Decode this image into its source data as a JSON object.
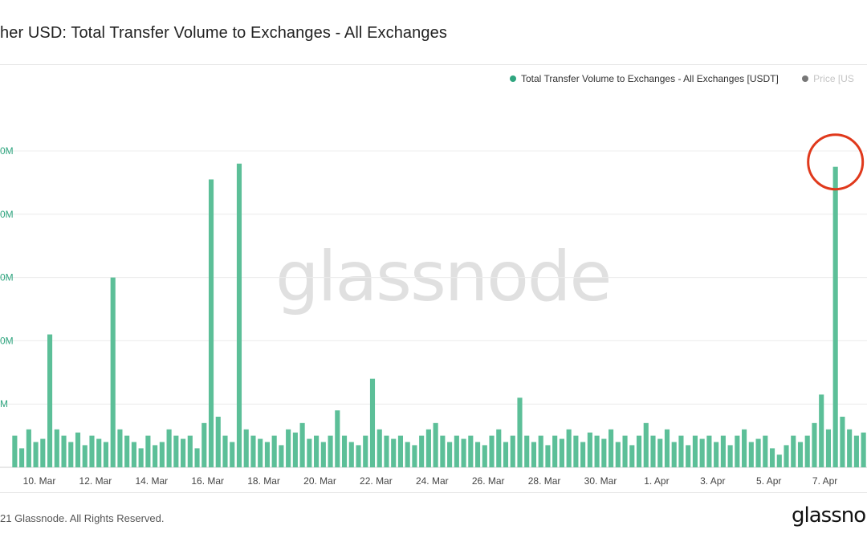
{
  "header": {
    "title": "her USD: Total Transfer Volume to Exchanges - All Exchanges"
  },
  "legend": {
    "items": [
      {
        "label": "Total Transfer Volume to Exchanges - All Exchanges [USDT]",
        "color": "#2fa57f"
      },
      {
        "label": "Price [US",
        "color": "#777777"
      }
    ]
  },
  "watermark": "glassnode",
  "footer": {
    "copyright": "21 Glassnode. All Rights Reserved.",
    "brand": "glassno"
  },
  "annotation": {
    "type": "circle",
    "color": "#e0391c",
    "target": "7 Apr spike"
  },
  "chart_data": {
    "type": "bar",
    "y_tick_labels": [
      "0M",
      "0M",
      "0M",
      "0M",
      "M"
    ],
    "x_tick_labels": [
      "10. Mar",
      "12. Mar",
      "14. Mar",
      "16. Mar",
      "18. Mar",
      "20. Mar",
      "22. Mar",
      "24. Mar",
      "26. Mar",
      "28. Mar",
      "30. Mar",
      "1. Apr",
      "3. Apr",
      "5. Apr",
      "7. Apr"
    ],
    "y_axis_note": "tick labels truncated at left edge; values estimated in gridline units (1 unit = one gridline step)",
    "ylim": [
      0,
      5
    ],
    "grid": true,
    "series": [
      {
        "name": "Total Transfer Volume to Exchanges - All Exchanges [USDT]",
        "color": "#5cbf98",
        "x": [
          "9 Mar 00:00",
          "9 Mar 06:00",
          "9 Mar 12:00",
          "9 Mar 18:00",
          "10 Mar 00:00",
          "10 Mar 06:00",
          "10 Mar 12:00",
          "10 Mar 18:00",
          "11 Mar 00:00",
          "11 Mar 06:00",
          "11 Mar 12:00",
          "11 Mar 18:00",
          "12 Mar 00:00",
          "12 Mar 06:00",
          "12 Mar 12:00",
          "12 Mar 18:00",
          "13 Mar 00:00",
          "13 Mar 06:00",
          "13 Mar 12:00",
          "13 Mar 18:00",
          "14 Mar 00:00",
          "14 Mar 06:00",
          "14 Mar 12:00",
          "14 Mar 18:00",
          "15 Mar 00:00",
          "15 Mar 06:00",
          "15 Mar 12:00",
          "15 Mar 18:00",
          "16 Mar 00:00",
          "16 Mar 06:00",
          "16 Mar 12:00",
          "16 Mar 18:00",
          "17 Mar 00:00",
          "17 Mar 06:00",
          "17 Mar 12:00",
          "17 Mar 18:00",
          "18 Mar 00:00",
          "18 Mar 06:00",
          "18 Mar 12:00",
          "18 Mar 18:00",
          "19 Mar 00:00",
          "19 Mar 06:00",
          "19 Mar 12:00",
          "19 Mar 18:00",
          "20 Mar 00:00",
          "20 Mar 06:00",
          "20 Mar 12:00",
          "20 Mar 18:00",
          "21 Mar 00:00",
          "21 Mar 06:00",
          "21 Mar 12:00",
          "21 Mar 18:00",
          "22 Mar 00:00",
          "22 Mar 06:00",
          "22 Mar 12:00",
          "22 Mar 18:00",
          "23 Mar 00:00",
          "23 Mar 06:00",
          "23 Mar 12:00",
          "23 Mar 18:00",
          "24 Mar 00:00",
          "24 Mar 06:00",
          "24 Mar 12:00",
          "24 Mar 18:00",
          "25 Mar 00:00",
          "25 Mar 06:00",
          "25 Mar 12:00",
          "25 Mar 18:00",
          "26 Mar 00:00",
          "26 Mar 06:00",
          "26 Mar 12:00",
          "26 Mar 18:00",
          "27 Mar 00:00",
          "27 Mar 06:00",
          "27 Mar 12:00",
          "27 Mar 18:00",
          "28 Mar 00:00",
          "28 Mar 06:00",
          "28 Mar 12:00",
          "28 Mar 18:00",
          "29 Mar 00:00",
          "29 Mar 06:00",
          "29 Mar 12:00",
          "29 Mar 18:00",
          "30 Mar 00:00",
          "30 Mar 06:00",
          "30 Mar 12:00",
          "30 Mar 18:00",
          "31 Mar 00:00",
          "31 Mar 06:00",
          "31 Mar 12:00",
          "31 Mar 18:00",
          "1 Apr 00:00",
          "1 Apr 06:00",
          "1 Apr 12:00",
          "1 Apr 18:00",
          "2 Apr 00:00",
          "2 Apr 06:00",
          "2 Apr 12:00",
          "2 Apr 18:00",
          "3 Apr 00:00",
          "3 Apr 06:00",
          "3 Apr 12:00",
          "3 Apr 18:00",
          "4 Apr 00:00",
          "4 Apr 06:00",
          "4 Apr 12:00",
          "4 Apr 18:00",
          "5 Apr 00:00",
          "5 Apr 06:00",
          "5 Apr 12:00",
          "5 Apr 18:00",
          "6 Apr 00:00",
          "6 Apr 06:00",
          "6 Apr 12:00",
          "6 Apr 18:00",
          "7 Apr 00:00",
          "7 Apr 06:00",
          "7 Apr 12:00",
          "7 Apr 18:00",
          "8 Apr 00:00",
          "8 Apr 06:00"
        ],
        "values": [
          0.5,
          0.3,
          0.6,
          0.4,
          0.45,
          2.1,
          0.6,
          0.5,
          0.4,
          0.55,
          0.35,
          0.5,
          0.45,
          0.4,
          3.0,
          0.6,
          0.5,
          0.4,
          0.3,
          0.5,
          0.35,
          0.4,
          0.6,
          0.5,
          0.45,
          0.5,
          0.3,
          0.7,
          4.55,
          0.8,
          0.5,
          0.4,
          4.8,
          0.6,
          0.5,
          0.45,
          0.4,
          0.5,
          0.35,
          0.6,
          0.55,
          0.7,
          0.45,
          0.5,
          0.4,
          0.5,
          0.9,
          0.5,
          0.4,
          0.35,
          0.5,
          1.4,
          0.6,
          0.5,
          0.45,
          0.5,
          0.4,
          0.35,
          0.5,
          0.6,
          0.7,
          0.5,
          0.4,
          0.5,
          0.45,
          0.5,
          0.4,
          0.35,
          0.5,
          0.6,
          0.4,
          0.5,
          1.1,
          0.5,
          0.4,
          0.5,
          0.35,
          0.5,
          0.45,
          0.6,
          0.5,
          0.4,
          0.55,
          0.5,
          0.45,
          0.6,
          0.4,
          0.5,
          0.35,
          0.5,
          0.7,
          0.5,
          0.45,
          0.6,
          0.4,
          0.5,
          0.35,
          0.5,
          0.45,
          0.5,
          0.4,
          0.5,
          0.35,
          0.5,
          0.6,
          0.4,
          0.45,
          0.5,
          0.3,
          0.2,
          0.35,
          0.5,
          0.4,
          0.5,
          0.7,
          1.15,
          0.6,
          4.75,
          0.8,
          0.6,
          0.5,
          0.55
        ]
      }
    ]
  }
}
